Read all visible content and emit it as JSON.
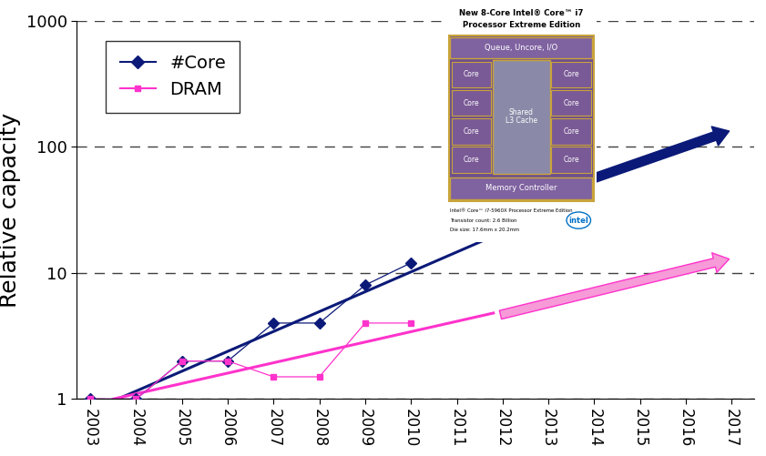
{
  "chart_data": {
    "type": "line",
    "y_label": "Relative capacity",
    "log": "y",
    "grid": true,
    "legend": "upper left",
    "xlim": [
      2002.7,
      2017.5
    ],
    "xticks": [
      2003,
      2004,
      2005,
      2006,
      2007,
      2008,
      2009,
      2010,
      2011,
      2012,
      2013,
      2014,
      2015,
      2016,
      2017
    ],
    "ylim": [
      1,
      1000
    ],
    "yticks": [
      1,
      10,
      100,
      1000
    ],
    "x": [
      2003,
      2004,
      2005,
      2006,
      2007,
      2008,
      2009,
      2010
    ],
    "series": [
      {
        "name": "#Core",
        "color": "#0b1a78",
        "marker": "diamond",
        "line_style": "solid",
        "values": [
          1,
          1,
          2,
          2,
          4,
          4,
          8,
          12
        ],
        "trend": {
          "x": [
            2003.6,
            2012
          ],
          "values": [
            1,
            21
          ]
        },
        "arrow": {
          "x": [
            2011.6,
            2017
          ],
          "values": [
            28,
            135
          ]
        }
      },
      {
        "name": "DRAM",
        "color": "#ff33cc",
        "marker": "square",
        "line_style": "solid",
        "values": [
          1,
          1,
          2,
          2,
          1.5,
          1.5,
          4,
          4
        ],
        "trend": {
          "x": [
            2003.5,
            2011.8
          ],
          "values": [
            1,
            4.8
          ]
        },
        "arrow": {
          "x": [
            2011.9,
            2017
          ],
          "values": [
            4.6,
            13
          ]
        }
      }
    ],
    "annotations": {
      "title_lines": [
        "New 8-Core Intel® Core™ i7",
        "Processor Extreme Edition"
      ],
      "top_block": "Queue, Uncore, I/O",
      "cores": [
        "Core",
        "Core",
        "Core",
        "Core",
        "Core",
        "Core",
        "Core",
        "Core"
      ],
      "cache_lines": [
        "Shared",
        "L3 Cache"
      ],
      "bottom_block": "Memory Controller",
      "footer_lines": [
        "Intel® Core™ i7-5960X Processor Extreme Edition",
        "Transistor count: 2.6 Billion",
        "Die size: 17.6mm x 20.2mm"
      ],
      "logo": "intel"
    }
  }
}
